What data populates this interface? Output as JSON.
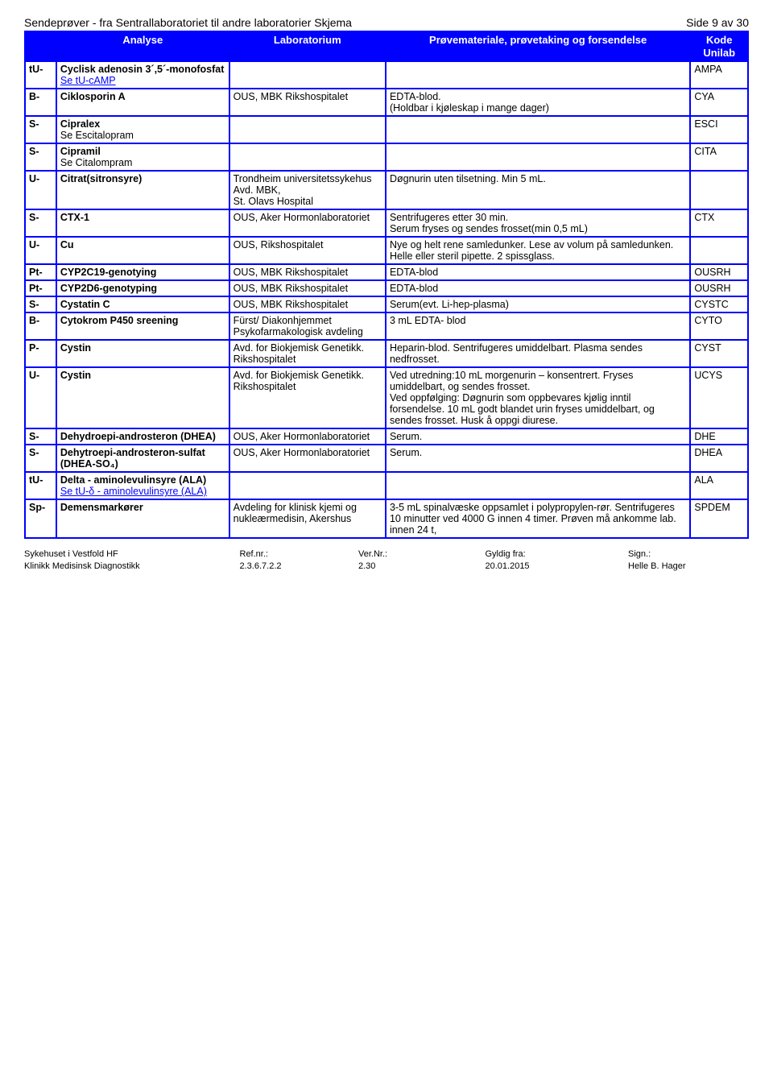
{
  "header": {
    "title": "Sendeprøver - fra Sentrallaboratoriet til andre laboratorier Skjema",
    "page": "Side 9 av 30"
  },
  "columns": {
    "prefix": "",
    "analyse": "Analyse",
    "lab": "Laboratorium",
    "proeve": "Prøvemateriale, prøvetaking og forsendelse",
    "kode": "Kode Unilab"
  },
  "rows": [
    {
      "prefix": "tU-",
      "analyse_bold": "Cyclisk adenosin 3´,5´-monofosfat",
      "analyse_link": "Se tU-cAMP",
      "lab": "",
      "proeve": "",
      "kode": "AMPA"
    },
    {
      "prefix": "B-",
      "analyse_bold": "Ciklosporin A",
      "lab": "OUS, MBK Rikshospitalet",
      "proeve": "EDTA-blod.\n(Holdbar i kjøleskap i mange dager)",
      "kode": "CYA"
    },
    {
      "prefix": "S-",
      "analyse_bold": "Cipralex",
      "analyse_plain": "Se Escitalopram",
      "lab": "",
      "proeve": "",
      "kode": "ESCI"
    },
    {
      "prefix": "S-",
      "analyse_bold": "Cipramil",
      "analyse_plain": "Se Citalompram",
      "lab": "",
      "proeve": "",
      "kode": "CITA"
    },
    {
      "prefix": "U-",
      "analyse_bold": "Citrat(sitronsyre)",
      "lab": "Trondheim universitetssykehus Avd. MBK,\nSt. Olavs Hospital",
      "proeve": "Døgnurin uten tilsetning. Min 5 mL.",
      "kode": ""
    },
    {
      "prefix": "S-",
      "analyse_bold": "CTX-1",
      "lab": "OUS, Aker Hormonlaboratoriet",
      "proeve": "Sentrifugeres etter 30 min.\nSerum fryses og sendes frosset(min 0,5 mL)",
      "kode": "CTX"
    },
    {
      "prefix": "U-",
      "analyse_bold": "Cu",
      "lab": "OUS, Rikshospitalet",
      "proeve": "Nye og helt rene samledunker. Lese av volum på samledunken. Helle eller steril pipette. 2 spissglass.",
      "kode": ""
    },
    {
      "prefix": "Pt-",
      "analyse_bold": "CYP2C19-genotying",
      "lab": "OUS, MBK Rikshospitalet",
      "proeve": "EDTA-blod",
      "kode": "OUSRH"
    },
    {
      "prefix": "Pt-",
      "analyse_bold": "CYP2D6-genotyping",
      "lab": "OUS, MBK Rikshospitalet",
      "proeve": "EDTA-blod",
      "kode": "OUSRH"
    },
    {
      "prefix": "S-",
      "analyse_bold": "Cystatin C",
      "lab": "OUS, MBK Rikshospitalet",
      "proeve": "Serum(evt. Li-hep-plasma)",
      "kode": "CYSTC"
    },
    {
      "prefix": "B-",
      "analyse_bold": "Cytokrom P450 sreening",
      "lab": "Fürst/ Diakonhjemmet Psykofarmakologisk avdeling",
      "proeve": "3 mL EDTA- blod",
      "kode": "CYTO"
    },
    {
      "prefix": "P-",
      "analyse_bold": "Cystin",
      "lab": "Avd. for Biokjemisk Genetikk. Rikshospitalet",
      "proeve": "Heparin-blod. Sentrifugeres umiddelbart. Plasma sendes nedfrosset.",
      "kode": "CYST"
    },
    {
      "prefix": "U-",
      "analyse_bold": "Cystin",
      "lab": "Avd. for Biokjemisk Genetikk. Rikshospitalet",
      "proeve": "Ved utredning:10 mL morgenurin – konsentrert. Fryses umiddelbart, og sendes frosset.\nVed oppfølging: Døgnurin som oppbevares kjølig inntil forsendelse. 10 mL godt blandet urin fryses umiddelbart, og sendes frosset. Husk å oppgi diurese.",
      "kode": "UCYS"
    },
    {
      "prefix": "S-",
      "analyse_bold": "Dehydroepi-androsteron (DHEA)",
      "lab": "OUS, Aker Hormonlaboratoriet",
      "proeve": "Serum.",
      "kode": "DHE"
    },
    {
      "prefix": "S-",
      "analyse_bold": "Dehytroepi-androsteron-sulfat (DHEA-SO₄)",
      "lab": "OUS, Aker Hormonlaboratoriet",
      "proeve": "Serum.",
      "kode": "DHEA"
    },
    {
      "prefix": "tU-",
      "analyse_bold": "Delta - aminolevulinsyre (ALA)",
      "analyse_link": "Se tU-δ - aminolevulinsyre (ALA)",
      "lab": "",
      "proeve": "",
      "kode": "ALA"
    },
    {
      "prefix": "Sp-",
      "analyse_bold": "Demensmarkører",
      "lab": "Avdeling for klinisk kjemi og nukleærmedisin, Akershus",
      "proeve": "3-5 mL spinalvæske oppsamlet i polypropylen-rør. Sentrifugeres 10 minutter ved 4000 G innen 4 timer. Prøven må ankomme lab. innen 24 t,",
      "kode": "SPDEM"
    }
  ],
  "footer": {
    "c1": "Sykehuset i Vestfold HF\nKlinikk Medisinsk Diagnostikk",
    "c2": "Ref.nr.:\n2.3.6.7.2.2",
    "c3": "Ver.Nr.:\n2.30",
    "c4": "Gyldig fra:\n20.01.2015",
    "c5": "Sign.:\nHelle B. Hager"
  }
}
